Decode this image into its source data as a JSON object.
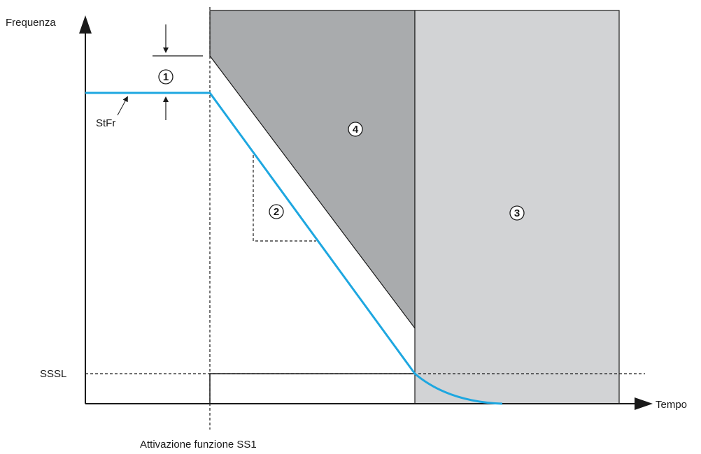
{
  "axes": {
    "y_label": "Frequenza",
    "x_label": "Tempo"
  },
  "labels": {
    "stfr": "StFr",
    "sssl": "SSSL",
    "activation": "Attivazione funzione SS1"
  },
  "markers": {
    "m1": "1",
    "m2": "2",
    "m3": "3",
    "m4": "4"
  },
  "colors": {
    "frequency_curve": "#1ea7e0",
    "region_4_fill": "#a9abad",
    "region_3_fill": "#d2d3d5",
    "axis": "#1a1a1a"
  }
}
